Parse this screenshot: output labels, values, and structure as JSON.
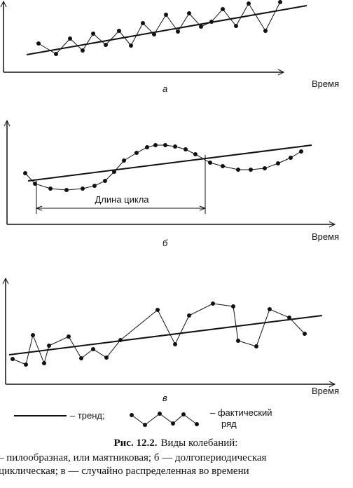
{
  "chart_data": [
    {
      "type": "line",
      "label": "а",
      "x_label": "Время",
      "xlim": [
        0,
        440
      ],
      "ylim": [
        0,
        103
      ],
      "series": [
        {
          "color": "#111",
          "x": [
            50,
            75,
            95,
            113,
            128,
            146,
            165,
            182,
            199,
            215,
            232,
            249,
            265,
            282,
            297,
            313,
            332,
            350,
            374,
            395
          ],
          "values": [
            41,
            26,
            48,
            31,
            55,
            39,
            59,
            38,
            70,
            54,
            82,
            58,
            84,
            65,
            72,
            90,
            66,
            98,
            59,
            100
          ]
        }
      ],
      "trend": {
        "color": "#111",
        "x": [
          33,
          433
        ],
        "values": [
          25,
          95
        ]
      }
    },
    {
      "type": "line",
      "label": "б",
      "x_label": "Время",
      "annotation": "Длина цикла",
      "xlim": [
        0,
        470
      ],
      "ylim": [
        0,
        150
      ],
      "series": [
        {
          "color": "#111",
          "x": [
            26,
            40,
            62,
            85,
            108,
            125,
            140,
            153,
            167,
            185,
            200,
            212,
            226,
            240,
            255,
            269,
            290,
            308,
            330,
            348,
            368,
            387,
            405,
            420
          ],
          "values": [
            73,
            58,
            51,
            49,
            51,
            55,
            62,
            75,
            91,
            102,
            110,
            113,
            113,
            111,
            107,
            100,
            88,
            83,
            78,
            78,
            80,
            87,
            95,
            104
          ]
        }
      ],
      "trend": {
        "color": "#111",
        "x": [
          30,
          435
        ],
        "values": [
          62,
          113
        ]
      }
    },
    {
      "type": "line",
      "label": "в",
      "x_label": "Время",
      "xlim": [
        0,
        480
      ],
      "ylim": [
        0,
        153
      ],
      "series": [
        {
          "color": "#111",
          "x": [
            10,
            29,
            39,
            55,
            62,
            90,
            108,
            125,
            144,
            164,
            217,
            242,
            262,
            296,
            325,
            332,
            358,
            377,
            405,
            427
          ],
          "values": [
            36,
            28,
            70,
            30,
            55,
            68,
            37,
            50,
            38,
            63,
            106,
            57,
            98,
            115,
            111,
            62,
            54,
            107,
            95,
            72
          ]
        }
      ],
      "trend": {
        "color": "#111",
        "x": [
          5,
          452
        ],
        "values": [
          42,
          98
        ]
      }
    }
  ],
  "legend": {
    "trend": "– тренд;",
    "actual_1": "– фактический",
    "actual_2": "ряд"
  },
  "caption": {
    "label": "Рис. 12.2.",
    "title": "Виды колебаний:",
    "line_1": "– пилообразная, или маятниковая; б — долгопериодическая",
    "line_2": "циклическая; в — случайно распределенная во времени"
  }
}
